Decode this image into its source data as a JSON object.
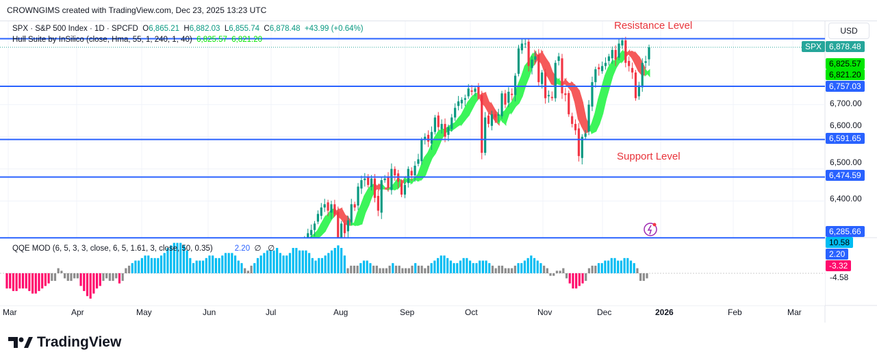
{
  "credit": "CROWNGIMS created with TradingView.com, Dec 23, 2025 13:23 UTC",
  "legend": {
    "symbol": "SPX · S&P 500 Index · 1D · SPCFD",
    "o_label": "O",
    "o": "6,865.21",
    "h_label": "H",
    "h": "6,882.03",
    "l_label": "L",
    "l": "6,855.74",
    "c_label": "C",
    "c": "6,878.48",
    "change": "+43.99 (+0.64%)",
    "hull": "Hull Suite by InSilico (close, Hma, 55, 1, 240, 1, 40)",
    "hull_v1": "6,825.57",
    "hull_v2": "6,821.20"
  },
  "qqe_legend": {
    "name": "QQE MOD (6, 5, 3, 3, close, 6, 5, 1.61, 3, close, 50, 0.35)",
    "value": "2.20",
    "na1": "∅",
    "na2": "∅"
  },
  "currency": "USD",
  "annotations": {
    "resistance": "Resistance Level",
    "support": "Support Level"
  },
  "price_axis": {
    "symbol_tag": "SPX",
    "last": "6,878.48",
    "hull1": "6,825.57",
    "hull2": "6,821.20",
    "ticks": [
      "6,700.00",
      "6,600.00",
      "6,500.00",
      "6,400.00"
    ]
  },
  "levels": [
    {
      "value": 6757.03,
      "label": "6,757.03"
    },
    {
      "value": 6591.65,
      "label": "6,591.65"
    },
    {
      "value": 6474.59,
      "label": "6,474.59"
    },
    {
      "value": 6285.66,
      "label": "6,285.66"
    },
    {
      "value": 6905,
      "label": ""
    }
  ],
  "qqe_axis": {
    "v1": "10.58",
    "v2": "2.20",
    "v3": "-3.32",
    "v4": "-4.58"
  },
  "months": [
    "Mar",
    "Apr",
    "May",
    "Jun",
    "Jul",
    "Aug",
    "Sep",
    "Oct",
    "Nov",
    "Dec",
    "2026",
    "Feb",
    "Mar"
  ],
  "colors": {
    "up": "#089981",
    "down": "#f23645",
    "level": "#2962ff",
    "hull_up": "#3cf55a",
    "hull_down": "#f55a5a",
    "qqe_pos": "#00bcf2",
    "qqe_neg": "#ff0a6c",
    "qqe_neutral": "#8c8c8c"
  },
  "brand": "TradingView",
  "chart_data": {
    "type": "candlestick",
    "start": "2025-07-14",
    "end": "2025-12-23",
    "closes": [
      6260,
      6280,
      6300,
      6310,
      6330,
      6360,
      6380,
      6390,
      6370,
      6390,
      6360,
      6240,
      6330,
      6300,
      6340,
      6390,
      6380,
      6445,
      6465,
      6470,
      6450,
      6470,
      6410,
      6370,
      6465,
      6470,
      6440,
      6500,
      6480,
      6460,
      6420,
      6450,
      6500,
      6480,
      6510,
      6530,
      6590,
      6600,
      6585,
      6615,
      6660,
      6630,
      6640,
      6600,
      6630,
      6660,
      6690,
      6710,
      6715,
      6720,
      6750,
      6740,
      6750,
      6735,
      6550,
      6660,
      6640,
      6670,
      6660,
      6670,
      6735,
      6700,
      6740,
      6730,
      6790,
      6875,
      6890,
      6890,
      6820,
      6840,
      6850,
      6770,
      6800,
      6720,
      6730,
      6720,
      6830,
      6850,
      6735,
      6730,
      6670,
      6640,
      6620,
      6540,
      6600,
      6610,
      6700,
      6770,
      6810,
      6810,
      6820,
      6830,
      6850,
      6870,
      6840,
      6890,
      6900,
      6830,
      6820,
      6800,
      6720,
      6760,
      6830,
      6835,
      6878.48
    ],
    "qqe_start": "2025-03-03",
    "qqe": [
      -6,
      -6,
      -7,
      -7,
      -6,
      -6,
      -6,
      -7,
      -8,
      -8,
      -7,
      -6,
      -5,
      -4,
      -3,
      -3,
      2,
      1,
      -2,
      -3,
      -3,
      -2,
      -2,
      -5,
      -7,
      -9,
      -10,
      -8,
      -6,
      -5,
      -3,
      -2,
      -3,
      -3,
      -2,
      -4,
      -3,
      2,
      3,
      4,
      5,
      5,
      6,
      7,
      7,
      6,
      6,
      6,
      7,
      8,
      10,
      11,
      12,
      12,
      12,
      11,
      9,
      6,
      4,
      5,
      5,
      5,
      6,
      7,
      7,
      6,
      6,
      7,
      8,
      8,
      8,
      7,
      5,
      4,
      2,
      1,
      3,
      4,
      6,
      7,
      8,
      9,
      9,
      9,
      10,
      8,
      7,
      7,
      8,
      10,
      10,
      9,
      9,
      9,
      8,
      6,
      5,
      6,
      6,
      7,
      8,
      9,
      10,
      11,
      10,
      7,
      2,
      3,
      3,
      3,
      4,
      5,
      5,
      4,
      3,
      3,
      2,
      2,
      2,
      3,
      4,
      3,
      3,
      2,
      2,
      2,
      3,
      4,
      3,
      3,
      2,
      3,
      4,
      5,
      6,
      7,
      7,
      6,
      5,
      4,
      4,
      5,
      6,
      6,
      5,
      4,
      4,
      5,
      5,
      5,
      4,
      3,
      2,
      3,
      3,
      2,
      2,
      2,
      3,
      4,
      4,
      5,
      6,
      7,
      6,
      5,
      4,
      3,
      2,
      -1,
      -1,
      1,
      1,
      2,
      -2,
      -4,
      -6,
      -6,
      -5,
      -4,
      -3,
      2,
      3,
      3,
      4,
      4,
      5,
      5,
      6,
      6,
      5,
      5,
      6,
      6,
      5,
      4,
      2,
      -3,
      -3,
      -2
    ]
  }
}
